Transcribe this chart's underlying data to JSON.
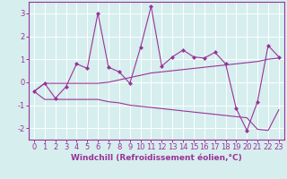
{
  "x": [
    0,
    1,
    2,
    3,
    4,
    5,
    6,
    7,
    8,
    9,
    10,
    11,
    12,
    13,
    14,
    15,
    16,
    17,
    18,
    19,
    20,
    21,
    22,
    23
  ],
  "y_main": [
    -0.4,
    -0.05,
    -0.7,
    -0.2,
    0.8,
    0.6,
    3.0,
    0.65,
    0.45,
    -0.05,
    1.5,
    3.3,
    0.7,
    1.1,
    1.4,
    1.1,
    1.05,
    1.3,
    0.8,
    -1.15,
    -2.1,
    -0.85,
    1.6,
    1.1
  ],
  "y_upper": [
    -0.4,
    -0.05,
    -0.05,
    -0.05,
    -0.05,
    -0.05,
    -0.05,
    0.0,
    0.1,
    0.2,
    0.3,
    0.4,
    0.45,
    0.5,
    0.55,
    0.6,
    0.65,
    0.7,
    0.75,
    0.8,
    0.85,
    0.9,
    1.0,
    1.05
  ],
  "y_lower": [
    -0.4,
    -0.75,
    -0.75,
    -0.75,
    -0.75,
    -0.75,
    -0.75,
    -0.85,
    -0.9,
    -1.0,
    -1.05,
    -1.1,
    -1.15,
    -1.2,
    -1.25,
    -1.3,
    -1.35,
    -1.4,
    -1.45,
    -1.5,
    -1.55,
    -2.05,
    -2.1,
    -1.2
  ],
  "color": "#993399",
  "bg_color": "#d6eeee",
  "grid_color": "#ffffff",
  "xlabel": "Windchill (Refroidissement éolien,°C)",
  "ylim": [
    -2.5,
    3.5
  ],
  "xlim": [
    -0.5,
    23.5
  ],
  "yticks": [
    -2,
    -1,
    0,
    1,
    2,
    3
  ],
  "xticks": [
    0,
    1,
    2,
    3,
    4,
    5,
    6,
    7,
    8,
    9,
    10,
    11,
    12,
    13,
    14,
    15,
    16,
    17,
    18,
    19,
    20,
    21,
    22,
    23
  ],
  "xlabel_fontsize": 6.5,
  "tick_fontsize": 6.0,
  "marker": "D",
  "markersize": 2.0,
  "linewidth": 0.8
}
